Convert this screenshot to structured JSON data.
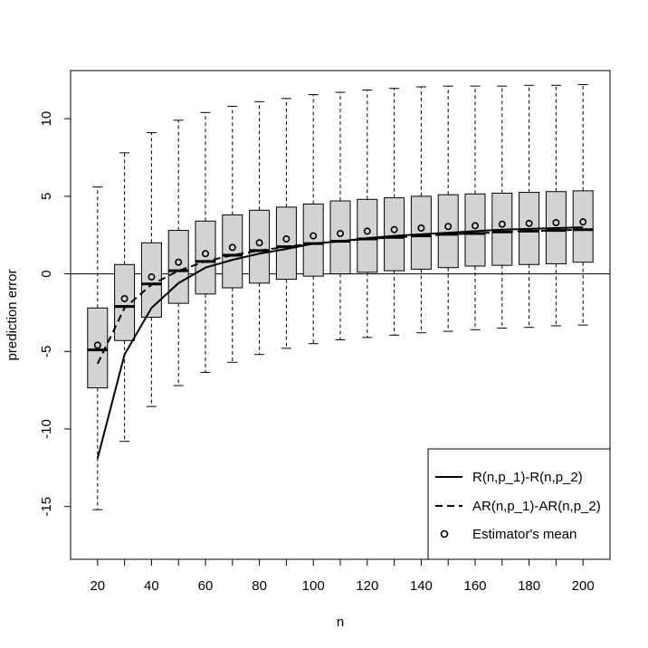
{
  "chart_data": {
    "type": "boxplot",
    "xlabel": "n",
    "ylabel": "prediction error",
    "xticks": [
      20,
      40,
      60,
      80,
      100,
      120,
      140,
      160,
      180,
      200
    ],
    "yticks": [
      -15,
      -10,
      -5,
      0,
      5,
      10
    ],
    "xlim": [
      10,
      210
    ],
    "ylim": [
      -18.4,
      13.1
    ],
    "reference_line_y": 0,
    "box_color": "#d3d3d3",
    "boxes": [
      {
        "n": 20,
        "whisker_low": -15.2,
        "q1": -7.35,
        "median": -4.9,
        "q3": -2.2,
        "whisker_high": 5.6,
        "mean": -4.6
      },
      {
        "n": 30,
        "whisker_low": -10.8,
        "q1": -4.3,
        "median": -2.1,
        "q3": 0.6,
        "whisker_high": 7.8,
        "mean": -1.6
      },
      {
        "n": 40,
        "whisker_low": -8.55,
        "q1": -2.8,
        "median": -0.65,
        "q3": 2.0,
        "whisker_high": 9.1,
        "mean": -0.2
      },
      {
        "n": 50,
        "whisker_low": -7.2,
        "q1": -1.9,
        "median": 0.2,
        "q3": 2.8,
        "whisker_high": 9.9,
        "mean": 0.75
      },
      {
        "n": 60,
        "whisker_low": -6.35,
        "q1": -1.3,
        "median": 0.8,
        "q3": 3.4,
        "whisker_high": 10.4,
        "mean": 1.3
      },
      {
        "n": 70,
        "whisker_low": -5.7,
        "q1": -0.9,
        "median": 1.2,
        "q3": 3.8,
        "whisker_high": 10.8,
        "mean": 1.7
      },
      {
        "n": 80,
        "whisker_low": -5.2,
        "q1": -0.6,
        "median": 1.5,
        "q3": 4.1,
        "whisker_high": 11.1,
        "mean": 2.0
      },
      {
        "n": 90,
        "whisker_low": -4.8,
        "q1": -0.35,
        "median": 1.75,
        "q3": 4.3,
        "whisker_high": 11.3,
        "mean": 2.25
      },
      {
        "n": 100,
        "whisker_low": -4.5,
        "q1": -0.15,
        "median": 1.95,
        "q3": 4.5,
        "whisker_high": 11.55,
        "mean": 2.45
      },
      {
        "n": 110,
        "whisker_low": -4.25,
        "q1": 0.0,
        "median": 2.1,
        "q3": 4.7,
        "whisker_high": 11.7,
        "mean": 2.6
      },
      {
        "n": 120,
        "whisker_low": -4.1,
        "q1": 0.1,
        "median": 2.25,
        "q3": 4.8,
        "whisker_high": 11.85,
        "mean": 2.75
      },
      {
        "n": 130,
        "whisker_low": -3.95,
        "q1": 0.2,
        "median": 2.35,
        "q3": 4.9,
        "whisker_high": 11.95,
        "mean": 2.85
      },
      {
        "n": 140,
        "whisker_low": -3.8,
        "q1": 0.3,
        "median": 2.45,
        "q3": 5.0,
        "whisker_high": 12.05,
        "mean": 2.95
      },
      {
        "n": 150,
        "whisker_low": -3.7,
        "q1": 0.4,
        "median": 2.55,
        "q3": 5.1,
        "whisker_high": 12.1,
        "mean": 3.05
      },
      {
        "n": 160,
        "whisker_low": -3.6,
        "q1": 0.5,
        "median": 2.6,
        "q3": 5.15,
        "whisker_high": 12.1,
        "mean": 3.1
      },
      {
        "n": 170,
        "whisker_low": -3.5,
        "q1": 0.55,
        "median": 2.7,
        "q3": 5.2,
        "whisker_high": 12.1,
        "mean": 3.2
      },
      {
        "n": 180,
        "whisker_low": -3.45,
        "q1": 0.6,
        "median": 2.75,
        "q3": 5.25,
        "whisker_high": 12.15,
        "mean": 3.25
      },
      {
        "n": 190,
        "whisker_low": -3.35,
        "q1": 0.65,
        "median": 2.8,
        "q3": 5.3,
        "whisker_high": 12.15,
        "mean": 3.3
      },
      {
        "n": 200,
        "whisker_low": -3.3,
        "q1": 0.75,
        "median": 2.85,
        "q3": 5.35,
        "whisker_high": 12.2,
        "mean": 3.35
      }
    ],
    "series": [
      {
        "name": "R(n,p_1)-R(n,p_2)",
        "style": "solid",
        "x": [
          20,
          30,
          40,
          50,
          60,
          70,
          80,
          90,
          100,
          110,
          120,
          130,
          140,
          150,
          160,
          170,
          180,
          190,
          200
        ],
        "y": [
          -11.9,
          -5.2,
          -2.2,
          -0.6,
          0.4,
          0.9,
          1.3,
          1.6,
          1.95,
          2.1,
          2.3,
          2.45,
          2.55,
          2.65,
          2.75,
          2.85,
          2.9,
          2.95,
          3.0
        ]
      },
      {
        "name": "AR(n,p_1)-AR(n,p_2)",
        "style": "dashed",
        "x": [
          20,
          30,
          40,
          50,
          60,
          70,
          80,
          90,
          100,
          110,
          120,
          130,
          140,
          150,
          160,
          170,
          180,
          190,
          200
        ],
        "y": [
          -5.8,
          -2.2,
          -0.7,
          0.2,
          0.8,
          1.2,
          1.5,
          1.75,
          1.95,
          2.1,
          2.25,
          2.35,
          2.45,
          2.55,
          2.6,
          2.7,
          2.75,
          2.8,
          2.85
        ]
      }
    ],
    "mean_marker_label": "Estimator's mean",
    "legend_position": "bottom-right"
  }
}
